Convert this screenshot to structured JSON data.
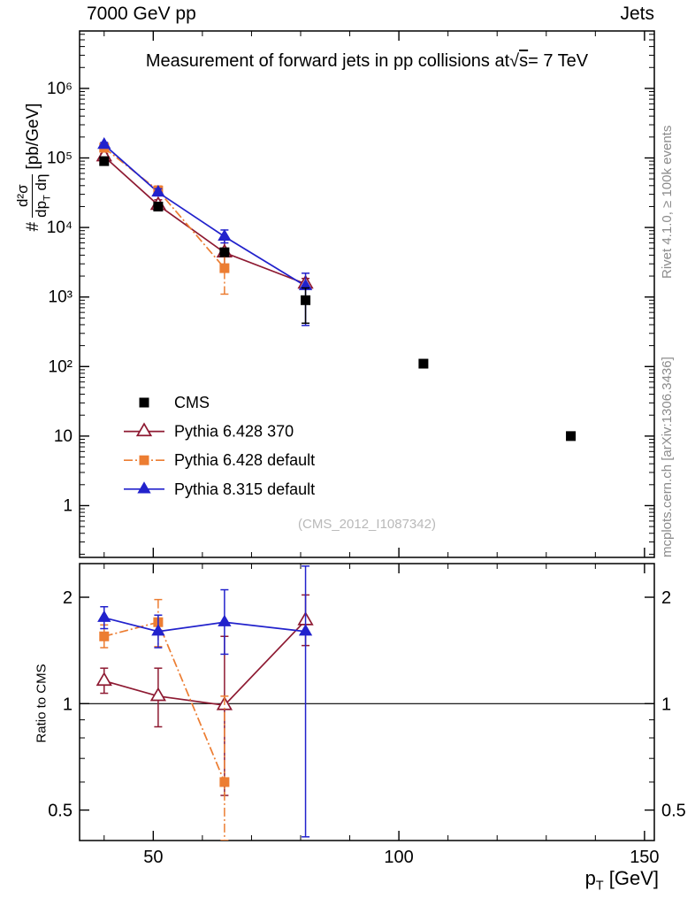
{
  "chart_data": {
    "type": "scatter",
    "header_left": "7000 GeV pp",
    "header_right": "Jets",
    "title_parts": {
      "pre": "Measurement of forward jets in pp collisions at",
      "radical": "√",
      "radicand": "s",
      "post": "= 7 TeV"
    },
    "watermark": "(CMS_2012_I1087342)",
    "side_notes": {
      "top": "Rivet 4.1.0, ≥ 100k events",
      "bottom": "mcplots.cern.ch [arXiv:1306.3436]"
    },
    "xlabel": {
      "base": "p",
      "sub": "T",
      "units": " [GeV]"
    },
    "ylabel": {
      "prefix": "#",
      "num": "d²σ",
      "den_base": "dp",
      "den_sub": "T",
      "den_rest": " dη",
      "units": "[pb/GeV]"
    },
    "ratio_label": "Ratio to CMS",
    "axes": {
      "x": {
        "scale": "linear",
        "min": 35,
        "max": 152,
        "major_ticks": [
          50,
          100,
          150
        ],
        "minor_step": 10
      },
      "y_main": {
        "scale": "log",
        "min": 0.18,
        "max": 6700000,
        "ticks": [
          {
            "v": 1,
            "label": "1"
          },
          {
            "v": 10,
            "label": "10"
          },
          {
            "v": 100,
            "label": "10²"
          },
          {
            "v": 1000,
            "label": "10³"
          },
          {
            "v": 10000,
            "label": "10⁴"
          },
          {
            "v": 100000,
            "label": "10⁵"
          },
          {
            "v": 1000000,
            "label": "10⁶"
          }
        ]
      },
      "y_ratio": {
        "scale": "log",
        "min": 0.41,
        "max": 2.49,
        "reference_line": 1,
        "ticks": [
          {
            "v": 0.5,
            "label": "0.5"
          },
          {
            "v": 1,
            "label": "1"
          },
          {
            "v": 2,
            "label": "2"
          }
        ]
      }
    },
    "series": [
      {
        "label": "CMS",
        "color": "#000000",
        "marker": "square-filled",
        "line": "none",
        "points": [
          {
            "x": 40,
            "y": 90000,
            "ylo": 84000,
            "yhi": 96000
          },
          {
            "x": 51,
            "y": 20000,
            "ylo": 18500,
            "yhi": 21500
          },
          {
            "x": 64.5,
            "y": 4400,
            "ylo": 3900,
            "yhi": 5000
          },
          {
            "x": 81,
            "y": 900,
            "ylo": 420,
            "yhi": 1350
          },
          {
            "x": 105,
            "y": 110,
            "ylo": 100,
            "yhi": 121
          },
          {
            "x": 135,
            "y": 10,
            "ylo": 9,
            "yhi": 11.2
          }
        ]
      },
      {
        "label": "Pythia 6.428 370",
        "color": "#8e1a32",
        "marker": "triangle-open",
        "line": "solid",
        "points": [
          {
            "x": 40,
            "y": 105000,
            "ylo": 96000,
            "yhi": 115000,
            "ratio": 1.16,
            "rlo": 1.07,
            "rhi": 1.26
          },
          {
            "x": 51,
            "y": 21000,
            "ylo": 17500,
            "yhi": 25000,
            "ratio": 1.05,
            "rlo": 0.86,
            "rhi": 1.26
          },
          {
            "x": 64.5,
            "y": 4350,
            "ylo": 2400,
            "yhi": 6900,
            "ratio": 0.99,
            "rlo": 0.55,
            "rhi": 1.55
          },
          {
            "x": 81,
            "y": 1550,
            "ylo": 1300,
            "yhi": 1850,
            "ratio": 1.72,
            "rlo": 1.46,
            "rhi": 2.03
          }
        ]
      },
      {
        "label": "Pythia 6.428 default",
        "color": "#ec7d32",
        "marker": "square-filled",
        "line": "dashdot",
        "points": [
          {
            "x": 40,
            "y": 140000,
            "ylo": 130000,
            "yhi": 150000,
            "ratio": 1.55,
            "rlo": 1.44,
            "rhi": 1.67
          },
          {
            "x": 51,
            "y": 34000,
            "ylo": 29000,
            "yhi": 39500,
            "ratio": 1.7,
            "rlo": 1.45,
            "rhi": 1.97
          },
          {
            "x": 64.5,
            "y": 2600,
            "ylo": 1100,
            "yhi": 4100,
            "ratio": 0.6,
            "rlo": 0.15,
            "rhi": 1.05
          }
        ]
      },
      {
        "label": "Pythia 8.315 default",
        "color": "#2222cc",
        "marker": "triangle-filled",
        "line": "solid",
        "points": [
          {
            "x": 40,
            "y": 155000,
            "ylo": 144000,
            "yhi": 167000,
            "ratio": 1.75,
            "rlo": 1.63,
            "rhi": 1.88
          },
          {
            "x": 51,
            "y": 32000,
            "ylo": 28500,
            "yhi": 36000,
            "ratio": 1.6,
            "rlo": 1.44,
            "rhi": 1.78
          },
          {
            "x": 64.5,
            "y": 7400,
            "ylo": 6000,
            "yhi": 9200,
            "ratio": 1.7,
            "rlo": 1.38,
            "rhi": 2.1
          },
          {
            "x": 81,
            "y": 1440,
            "ylo": 390,
            "yhi": 2200,
            "ratio": 1.6,
            "rlo": 0.42,
            "rhi": 2.45
          }
        ]
      }
    ]
  }
}
